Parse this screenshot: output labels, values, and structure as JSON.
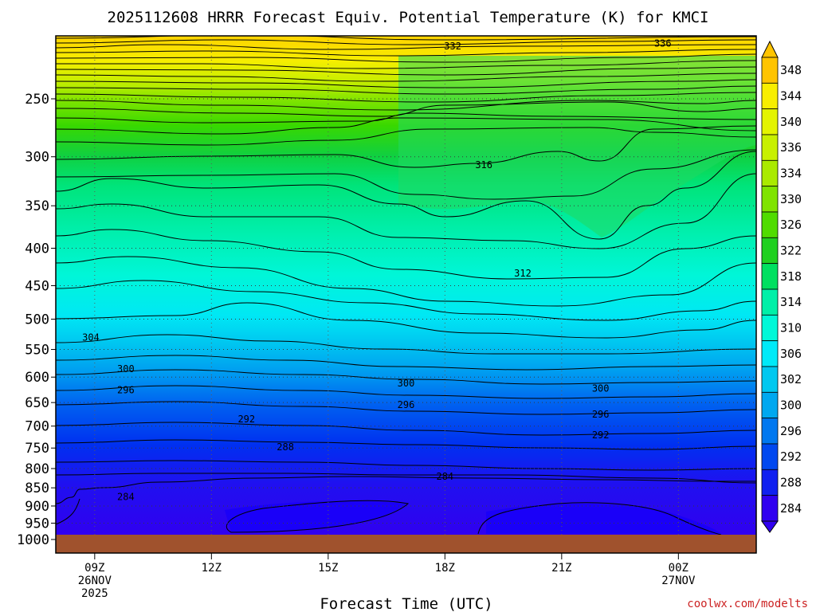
{
  "chart_data": {
    "type": "heatmap",
    "subtype": "filled-contour",
    "title": "2025112608 HRRR Forecast Equiv. Potential Temperature (K) for KMCI",
    "xlabel": "Forecast Time (UTC)",
    "ylabel": "",
    "x_ticks": [
      {
        "label": "09Z",
        "sublabels": [
          "26NOV",
          "2025"
        ],
        "hour": 1
      },
      {
        "label": "12Z",
        "sublabels": [],
        "hour": 4
      },
      {
        "label": "15Z",
        "sublabels": [],
        "hour": 7
      },
      {
        "label": "18Z",
        "sublabels": [],
        "hour": 10
      },
      {
        "label": "21Z",
        "sublabels": [],
        "hour": 13
      },
      {
        "label": "00Z",
        "sublabels": [
          "27NOV"
        ],
        "hour": 16
      }
    ],
    "xlim_hours": [
      0,
      18
    ],
    "y_axis": "pressure (hPa), log scale",
    "y_ticks": [
      250,
      300,
      350,
      400,
      450,
      500,
      550,
      600,
      650,
      700,
      750,
      800,
      850,
      900,
      950,
      1000
    ],
    "ylim": [
      1025,
      200
    ],
    "surface_pressure_hpa": 1005,
    "colorbar": {
      "ticks": [
        348,
        344,
        340,
        336,
        334,
        330,
        326,
        322,
        318,
        314,
        310,
        306,
        302,
        300,
        296,
        292,
        288,
        284
      ],
      "colors": [
        "#ffc400",
        "#f8ee00",
        "#e4f400",
        "#c8f000",
        "#aaea00",
        "#80e400",
        "#50dc00",
        "#20d020",
        "#00e060",
        "#00f0a8",
        "#00f8d8",
        "#00eaf8",
        "#00c8f0",
        "#00a8f0",
        "#0078f0",
        "#0048f0",
        "#1020f0",
        "#3000f0"
      ]
    },
    "contour_labels": [
      {
        "value": 332,
        "hour": 10.2,
        "pressure": 212
      },
      {
        "value": 336,
        "hour": 15.6,
        "pressure": 210
      },
      {
        "value": 316,
        "hour": 11.0,
        "pressure": 308
      },
      {
        "value": 312,
        "hour": 12.0,
        "pressure": 433
      },
      {
        "value": 304,
        "hour": 0.9,
        "pressure": 530
      },
      {
        "value": 300,
        "hour": 1.8,
        "pressure": 585
      },
      {
        "value": 296,
        "hour": 1.8,
        "pressure": 625
      },
      {
        "value": 300,
        "hour": 9.0,
        "pressure": 612
      },
      {
        "value": 296,
        "hour": 9.0,
        "pressure": 655
      },
      {
        "value": 300,
        "hour": 14.0,
        "pressure": 622
      },
      {
        "value": 296,
        "hour": 14.0,
        "pressure": 675
      },
      {
        "value": 292,
        "hour": 4.9,
        "pressure": 685
      },
      {
        "value": 292,
        "hour": 14.0,
        "pressure": 720
      },
      {
        "value": 288,
        "hour": 5.9,
        "pressure": 748
      },
      {
        "value": 284,
        "hour": 1.8,
        "pressure": 875
      },
      {
        "value": 284,
        "hour": 10.0,
        "pressure": 820
      }
    ],
    "credit": "coolwx.com/modelts"
  }
}
